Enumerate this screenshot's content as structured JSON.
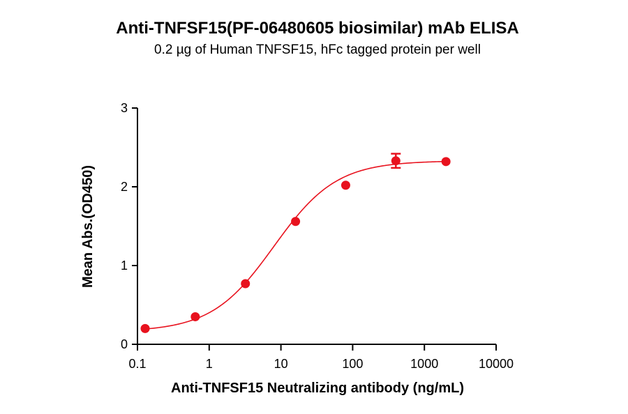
{
  "chart_data": {
    "type": "scatter",
    "title": "Anti-TNFSF15(PF-06480605 biosimilar) mAb ELISA",
    "subtitle": "0.2 µg of Human TNFSF15, hFc tagged protein per well",
    "xlabel": "Anti-TNFSF15 Neutralizing antibody (ng/mL)",
    "ylabel": "Mean Abs.(OD450)",
    "x_scale": "log",
    "xlim": [
      0.1,
      10000
    ],
    "ylim": [
      0,
      3
    ],
    "x_ticks": [
      0.1,
      1,
      10,
      100,
      1000,
      10000
    ],
    "x_tick_labels": [
      "0.1",
      "1",
      "10",
      "100",
      "1000",
      "10000"
    ],
    "y_ticks": [
      0,
      1,
      2,
      3
    ],
    "y_tick_labels": [
      "0",
      "1",
      "2",
      "3"
    ],
    "grid": false,
    "legend": "none",
    "color": "#e8121e",
    "series": [
      {
        "x": [
          0.128,
          0.64,
          3.2,
          16,
          80,
          400,
          2000
        ],
        "y": [
          0.2,
          0.35,
          0.77,
          1.56,
          2.02,
          2.33,
          2.32
        ],
        "error": [
          0.01,
          0.01,
          0.02,
          0.02,
          0.02,
          0.09,
          0.01
        ]
      }
    ],
    "fit": {
      "model": "4PL",
      "bottom": 0.16,
      "top": 2.33,
      "ec50": 8.0,
      "hill": 1.0
    }
  }
}
